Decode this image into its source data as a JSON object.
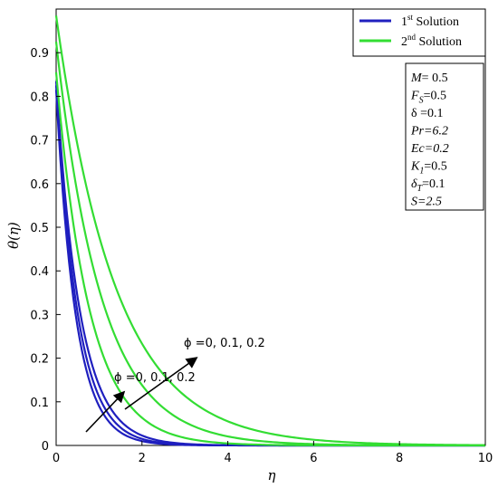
{
  "chart_data": {
    "type": "line",
    "title": "",
    "xlabel": "η",
    "ylabel": "θ(η)",
    "xlim": [
      0,
      10
    ],
    "ylim": [
      0,
      1.0
    ],
    "x_ticks": [
      0,
      2,
      4,
      6,
      8,
      10
    ],
    "y_ticks": [
      0,
      0.1,
      0.2,
      0.3,
      0.4,
      0.5,
      0.6,
      0.7,
      0.8,
      0.9
    ],
    "grid": false,
    "legend": {
      "position": "top-right",
      "entries": [
        {
          "label": "1st Solution",
          "main": "1",
          "sup": "st",
          "rest": " Solution",
          "color": "#1f1fbf"
        },
        {
          "label": "2nd Solution",
          "main": "2",
          "sup": "nd",
          "rest": " Solution",
          "color": "#33dd33"
        }
      ]
    },
    "parameters": [
      {
        "sym": "M",
        "sub": "",
        "val": "= 0.5",
        "italic": true
      },
      {
        "sym": "F",
        "sub": "S",
        "val": "=0.5",
        "italic": true
      },
      {
        "sym": "δ",
        "sub": "",
        "val": " =0.1",
        "italic": false
      },
      {
        "sym": "Pr=6.2",
        "sub": "",
        "val": "",
        "italic": true
      },
      {
        "sym": "Ec=0.2",
        "sub": "",
        "val": "",
        "italic": true
      },
      {
        "sym": "K",
        "sub": "1",
        "val": "=0.5",
        "italic": true
      },
      {
        "sym": "δ",
        "sub": "T",
        "val": "=0.1",
        "italic": true
      },
      {
        "sym": "S=2.5",
        "sub": "",
        "val": "",
        "italic": true
      }
    ],
    "annotations": [
      {
        "text": "ϕ =0, 0.1, 0.2",
        "for": "1st Solution"
      },
      {
        "text": "ϕ =0, 0.1, 0.2",
        "for": "2nd Solution"
      }
    ],
    "series": [
      {
        "name": "1st Solution",
        "group": "first",
        "color": "#1f1fbf",
        "y0": 0.815,
        "k": 2.2
      },
      {
        "name": "1st Solution",
        "group": "first",
        "color": "#1f1fbf",
        "y0": 0.825,
        "k": 2.0
      },
      {
        "name": "1st Solution",
        "group": "first",
        "color": "#1f1fbf",
        "y0": 0.835,
        "k": 1.8
      },
      {
        "name": "2nd Solution",
        "group": "second",
        "color": "#33dd33",
        "y0": 0.855,
        "k": 1.3
      },
      {
        "name": "2nd Solution",
        "group": "second",
        "color": "#33dd33",
        "y0": 0.925,
        "k": 0.95
      },
      {
        "name": "2nd Solution",
        "group": "second",
        "color": "#33dd33",
        "y0": 0.985,
        "k": 0.72
      }
    ]
  }
}
